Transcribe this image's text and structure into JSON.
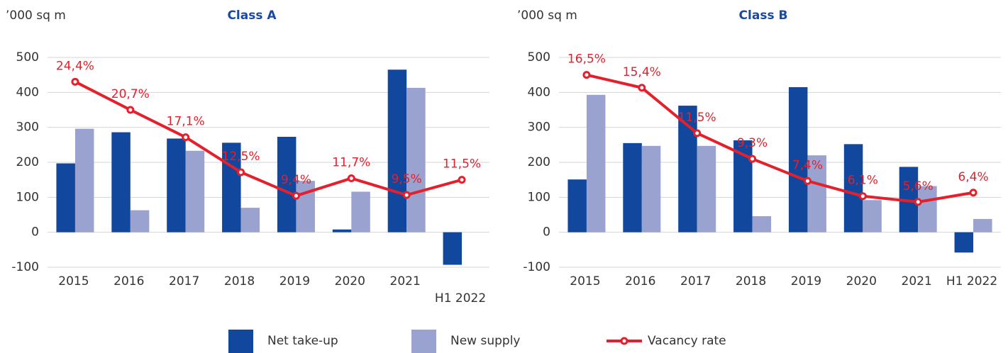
{
  "chart_data": [
    {
      "type": "bar",
      "title": "Class A",
      "y_label": "’000 sq m",
      "categories": [
        "2015",
        "2016",
        "2017",
        "2018",
        "2019",
        "2020",
        "2021",
        "H1 2022"
      ],
      "ylim": [
        -100,
        500
      ],
      "yticks": [
        -100,
        0,
        100,
        200,
        300,
        400,
        500
      ],
      "grid": true,
      "y2lim": [
        0,
        27.6
      ],
      "series": [
        {
          "name": "Net take-up",
          "type": "bar",
          "color": "#12479e",
          "values": [
            197,
            286,
            268,
            256,
            273,
            8,
            465,
            -93
          ]
        },
        {
          "name": "New supply",
          "type": "bar",
          "color": "#9aa3d0",
          "values": [
            296,
            63,
            233,
            70,
            147,
            116,
            413,
            0
          ]
        },
        {
          "name": "Vacancy rate",
          "type": "line",
          "axis": "y2",
          "color": "#e3202b",
          "values": [
            24.4,
            20.7,
            17.1,
            12.5,
            9.4,
            11.7,
            9.5,
            11.5
          ],
          "value_labels": [
            "24,4%",
            "20,7%",
            "17,1%",
            "12,5%",
            "9,4%",
            "11,7%",
            "9,5%",
            "11,5%"
          ]
        }
      ]
    },
    {
      "type": "bar",
      "title": "Class B",
      "y_label": "’000 sq m",
      "categories": [
        "2015",
        "2016",
        "2017",
        "2018",
        "2019",
        "2020",
        "2021",
        "H1 2022"
      ],
      "ylim": [
        -100,
        500
      ],
      "yticks": [
        -100,
        0,
        100,
        200,
        300,
        400,
        500
      ],
      "grid": true,
      "y2lim": [
        0,
        18.0
      ],
      "series": [
        {
          "name": "Net take-up",
          "type": "bar",
          "color": "#12479e",
          "values": [
            151,
            255,
            362,
            263,
            415,
            252,
            187,
            -58
          ]
        },
        {
          "name": "New supply",
          "type": "bar",
          "color": "#9aa3d0",
          "values": [
            393,
            247,
            247,
            46,
            220,
            92,
            132,
            38
          ]
        },
        {
          "name": "Vacancy rate",
          "type": "line",
          "axis": "y2",
          "color": "#e3202b",
          "values": [
            16.5,
            15.4,
            11.5,
            9.3,
            7.4,
            6.1,
            5.6,
            6.4
          ],
          "value_labels": [
            "16,5%",
            "15,4%",
            "11,5%",
            "9,3%",
            "7,4%",
            "6,1%",
            "5,6%",
            "6,4%"
          ]
        }
      ]
    }
  ]
}
